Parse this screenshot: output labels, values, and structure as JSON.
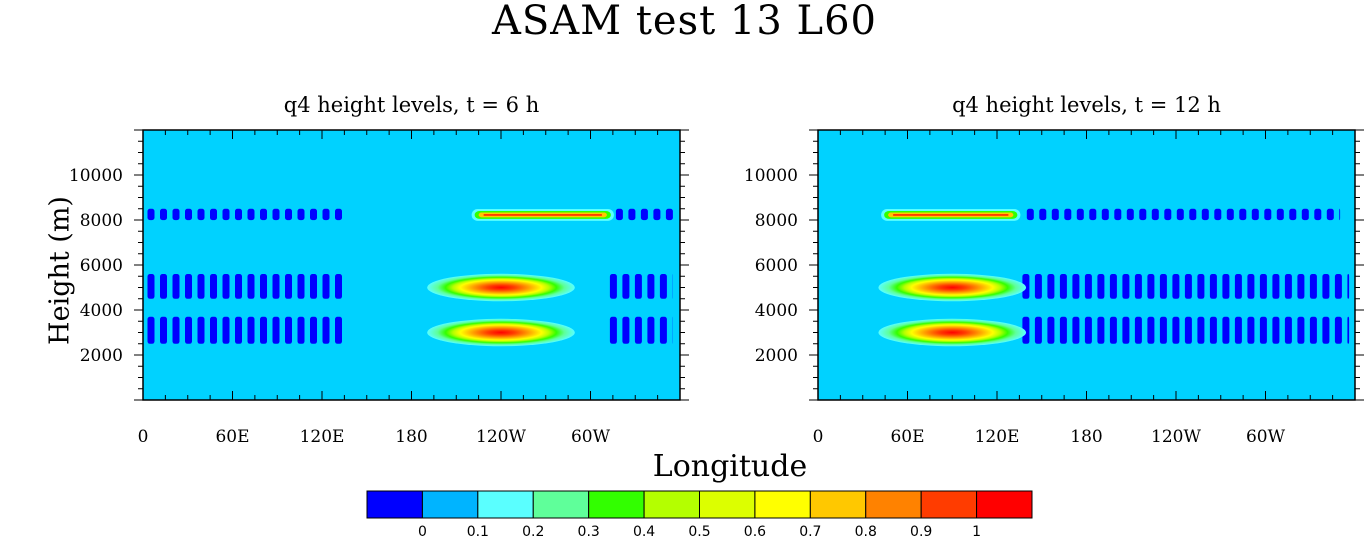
{
  "title": "ASAM test 13 L60",
  "ylabel": "Height (m)",
  "xlabel": "Longitude",
  "colors": {
    "background_field": "#00d2ff",
    "band_blue": "#0000ff",
    "frame": "#000000"
  },
  "chart_data": [
    {
      "type": "heatmap",
      "title": "q4 height levels, t = 6 h",
      "x_ticks": [
        "0",
        "60E",
        "120E",
        "180",
        "120W",
        "60W"
      ],
      "x_tick_values": [
        0,
        60,
        120,
        180,
        240,
        300
      ],
      "xlim": [
        0,
        360
      ],
      "y_ticks": [
        "2000",
        "4000",
        "6000",
        "8000",
        "10000"
      ],
      "y_tick_values": [
        2000,
        4000,
        6000,
        8000,
        10000
      ],
      "ylim": [
        0,
        12000
      ],
      "tracer_features": [
        {
          "kind": "thin-layer",
          "lon_range": [
            223,
            313
          ],
          "height_range": [
            8050,
            8400
          ]
        },
        {
          "kind": "blob",
          "lon_center": 240,
          "height": 5000,
          "lon_halfwidth": 33,
          "height_halfwidth": 420
        },
        {
          "kind": "blob",
          "lon_center": 240,
          "height": 3000,
          "lon_halfwidth": 33,
          "height_halfwidth": 420
        }
      ],
      "low_value_bands": [
        {
          "height_range": [
            8000,
            8500
          ],
          "lon_segments": [
            [
              3,
              137
            ],
            [
              317,
              357
            ]
          ]
        },
        {
          "height_range": [
            4500,
            5600
          ],
          "lon_segments": [
            [
              3,
              137
            ],
            [
              313,
              355
            ]
          ]
        },
        {
          "height_range": [
            2500,
            3700
          ],
          "lon_segments": [
            [
              3,
              137
            ],
            [
              313,
              355
            ]
          ]
        }
      ]
    },
    {
      "type": "heatmap",
      "title": "q4 height levels, t = 12 h",
      "x_ticks": [
        "0",
        "60E",
        "120E",
        "180",
        "120W",
        "60W"
      ],
      "x_tick_values": [
        0,
        60,
        120,
        180,
        240,
        300
      ],
      "xlim": [
        0,
        360
      ],
      "y_ticks": [
        "2000",
        "4000",
        "6000",
        "8000",
        "10000"
      ],
      "y_tick_values": [
        2000,
        4000,
        6000,
        8000,
        10000
      ],
      "ylim": [
        0,
        12000
      ],
      "tracer_features": [
        {
          "kind": "thin-layer",
          "lon_range": [
            45,
            133
          ],
          "height_range": [
            8050,
            8400
          ]
        },
        {
          "kind": "blob",
          "lon_center": 90,
          "height": 5000,
          "lon_halfwidth": 33,
          "height_halfwidth": 420
        },
        {
          "kind": "blob",
          "lon_center": 90,
          "height": 3000,
          "lon_halfwidth": 33,
          "height_halfwidth": 420
        }
      ],
      "low_value_bands": [
        {
          "height_range": [
            8000,
            8500
          ],
          "lon_segments": [
            [
              140,
              350
            ]
          ]
        },
        {
          "height_range": [
            4500,
            5600
          ],
          "lon_segments": [
            [
              137,
              356
            ]
          ]
        },
        {
          "height_range": [
            2500,
            3700
          ],
          "lon_segments": [
            [
              137,
              356
            ]
          ]
        }
      ]
    }
  ],
  "colorbar": {
    "labels": [
      "0",
      "0.1",
      "0.2",
      "0.3",
      "0.4",
      "0.5",
      "0.6",
      "0.7",
      "0.8",
      "0.9",
      "1"
    ],
    "colors": [
      "#0000ff",
      "#00b4ff",
      "#5affff",
      "#5fff9a",
      "#32ff00",
      "#b4ff00",
      "#dcff00",
      "#ffff00",
      "#ffc800",
      "#ff8200",
      "#ff3c00",
      "#ff0000"
    ]
  }
}
